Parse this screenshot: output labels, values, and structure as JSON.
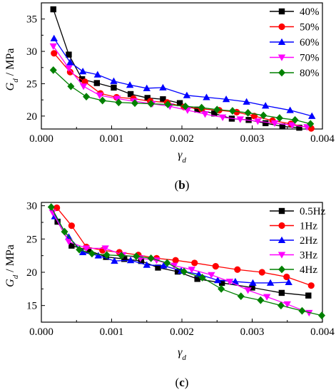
{
  "chart_data": [
    {
      "type": "line",
      "panel_label": {
        "open": "(",
        "letter": "b",
        "close": ")"
      },
      "xlabel": {
        "main": "γ",
        "sub": "d"
      },
      "ylabel": {
        "main": "G",
        "sub": "d",
        "rest": " / MPa"
      },
      "xlim": [
        0.0,
        0.004
      ],
      "ylim": [
        18,
        37.5
      ],
      "x_ticks": [
        "0.000",
        "0.001",
        "0.002",
        "0.003",
        "0.004"
      ],
      "y_ticks": [
        "20",
        "25",
        "30",
        "35"
      ],
      "x_tick_values": [
        0.0,
        0.001,
        0.002,
        0.003,
        0.004
      ],
      "y_tick_values": [
        20,
        25,
        30,
        35
      ],
      "legend_position": "top-right",
      "series": [
        {
          "name": "40%",
          "color": "#000000",
          "marker": "square",
          "x": [
            0.00017,
            0.00039,
            0.00058,
            0.00079,
            0.00103,
            0.00127,
            0.00151,
            0.00173,
            0.00197,
            0.00222,
            0.00246,
            0.00271,
            0.00295,
            0.00319,
            0.00343,
            0.00367
          ],
          "y": [
            36.5,
            29.5,
            25.7,
            25.1,
            24.4,
            23.4,
            22.8,
            22.6,
            22.0,
            21.0,
            20.4,
            19.6,
            19.4,
            18.9,
            18.4,
            18.2
          ]
        },
        {
          "name": "50%",
          "color": "#ff0000",
          "marker": "circle",
          "x": [
            0.00018,
            0.00041,
            0.00062,
            0.00084,
            0.00107,
            0.00131,
            0.00155,
            0.00179,
            0.00203,
            0.00228,
            0.00253,
            0.00278,
            0.00303,
            0.00329,
            0.00355,
            0.00384
          ],
          "y": [
            29.7,
            26.8,
            25.3,
            23.5,
            22.9,
            22.7,
            22.3,
            22.1,
            21.4,
            21.1,
            20.9,
            20.6,
            20.0,
            19.3,
            18.8,
            18.1
          ]
        },
        {
          "name": "60%",
          "color": "#0000ff",
          "marker": "triangle-up",
          "x": [
            0.00018,
            0.00041,
            0.00059,
            0.0008,
            0.00103,
            0.00126,
            0.0015,
            0.00173,
            0.00207,
            0.00235,
            0.00263,
            0.00292,
            0.00319,
            0.00354,
            0.00385
          ],
          "y": [
            32.0,
            28.3,
            26.9,
            26.4,
            25.4,
            24.8,
            24.3,
            24.4,
            23.2,
            22.9,
            22.6,
            22.2,
            21.6,
            20.9,
            20.0
          ]
        },
        {
          "name": "70%",
          "color": "#ff00ff",
          "marker": "triangle-down",
          "x": [
            0.00017,
            0.00039,
            0.0006,
            0.00083,
            0.00108,
            0.00132,
            0.00158,
            0.00183,
            0.00208,
            0.00233,
            0.00258,
            0.00283,
            0.00308,
            0.00332,
            0.00357,
            0.00378
          ],
          "y": [
            30.8,
            27.4,
            24.6,
            23.2,
            22.7,
            22.3,
            21.9,
            21.5,
            20.9,
            20.3,
            19.8,
            19.5,
            19.2,
            18.9,
            18.6,
            18.3
          ]
        },
        {
          "name": "80%",
          "color": "#008000",
          "marker": "diamond",
          "x": [
            0.00017,
            0.00042,
            0.00064,
            0.00087,
            0.0011,
            0.00133,
            0.00156,
            0.0018,
            0.00205,
            0.00228,
            0.0025,
            0.00272,
            0.00294,
            0.00316,
            0.00339,
            0.00361,
            0.00383
          ],
          "y": [
            27.1,
            24.6,
            23.0,
            22.4,
            22.1,
            22.0,
            21.9,
            21.8,
            21.5,
            21.3,
            21.0,
            20.8,
            20.5,
            20.1,
            19.7,
            19.4,
            18.8
          ]
        }
      ]
    },
    {
      "type": "line",
      "panel_label": {
        "open": "(",
        "letter": "c",
        "close": ")"
      },
      "xlabel": {
        "main": "γ",
        "sub": "d"
      },
      "ylabel": {
        "main": "G",
        "sub": "d",
        "rest": " / MPa"
      },
      "xlim": [
        0.0,
        0.004
      ],
      "ylim": [
        12.5,
        30.5
      ],
      "x_ticks": [
        "0.000",
        "0.001",
        "0.002",
        "0.003",
        "0.004"
      ],
      "y_ticks": [
        "15",
        "20",
        "25",
        "30"
      ],
      "x_tick_values": [
        0.0,
        0.001,
        0.002,
        0.003,
        0.004
      ],
      "y_tick_values": [
        15,
        20,
        25,
        30
      ],
      "legend_position": "top-right",
      "series": [
        {
          "name": "0.5Hz",
          "color": "#000000",
          "marker": "square",
          "x": [
            0.00023,
            0.00043,
            0.00067,
            0.00092,
            0.00118,
            0.00142,
            0.00166,
            0.00194,
            0.00222,
            0.00257,
            0.003,
            0.00342,
            0.0038
          ],
          "y": [
            27.6,
            24.0,
            23.3,
            22.3,
            22.0,
            21.7,
            20.7,
            20.1,
            19.0,
            18.4,
            17.7,
            16.9,
            16.5
          ]
        },
        {
          "name": "1Hz",
          "color": "#ff0000",
          "marker": "circle",
          "x": [
            0.00022,
            0.00043,
            0.00064,
            0.00087,
            0.00111,
            0.00138,
            0.00164,
            0.00191,
            0.00218,
            0.00248,
            0.00279,
            0.00314,
            0.00349,
            0.00384
          ],
          "y": [
            29.7,
            27.0,
            23.8,
            23.3,
            23.0,
            22.6,
            22.1,
            21.8,
            21.4,
            20.9,
            20.4,
            20.0,
            19.3,
            18.0
          ]
        },
        {
          "name": "2Hz",
          "color": "#0000ff",
          "marker": "triangle-up",
          "x": [
            0.00019,
            0.00039,
            0.00059,
            0.00081,
            0.00104,
            0.00127,
            0.0015,
            0.00174,
            0.00199,
            0.00224,
            0.00251,
            0.00276,
            0.00301,
            0.00326,
            0.00352
          ],
          "y": [
            28.4,
            25.3,
            23.0,
            22.5,
            21.7,
            21.8,
            21.1,
            21.0,
            20.2,
            19.7,
            18.8,
            18.6,
            18.4,
            18.4,
            18.5
          ]
        },
        {
          "name": "3Hz",
          "color": "#ff00ff",
          "marker": "triangle-down",
          "x": [
            0.00016,
            0.00039,
            0.00064,
            0.00091,
            0.00116,
            0.00141,
            0.00164,
            0.00189,
            0.00214,
            0.00242,
            0.00268,
            0.00294,
            0.00321,
            0.0035,
            0.00381
          ],
          "y": [
            29.0,
            24.6,
            23.6,
            23.6,
            22.6,
            22.1,
            21.8,
            21.0,
            20.4,
            19.6,
            18.6,
            17.3,
            16.3,
            15.2,
            13.9
          ]
        },
        {
          "name": "4Hz",
          "color": "#008000",
          "marker": "diamond",
          "x": [
            0.00014,
            0.00033,
            0.00054,
            0.00072,
            0.00093,
            0.00114,
            0.00135,
            0.00156,
            0.00179,
            0.00203,
            0.00229,
            0.00256,
            0.00284,
            0.00312,
            0.00341,
            0.00371,
            0.00399
          ],
          "y": [
            29.8,
            26.1,
            23.4,
            22.8,
            22.6,
            22.5,
            22.4,
            22.1,
            21.4,
            20.1,
            19.2,
            17.5,
            16.4,
            15.8,
            15.0,
            14.2,
            13.5
          ]
        }
      ]
    }
  ]
}
